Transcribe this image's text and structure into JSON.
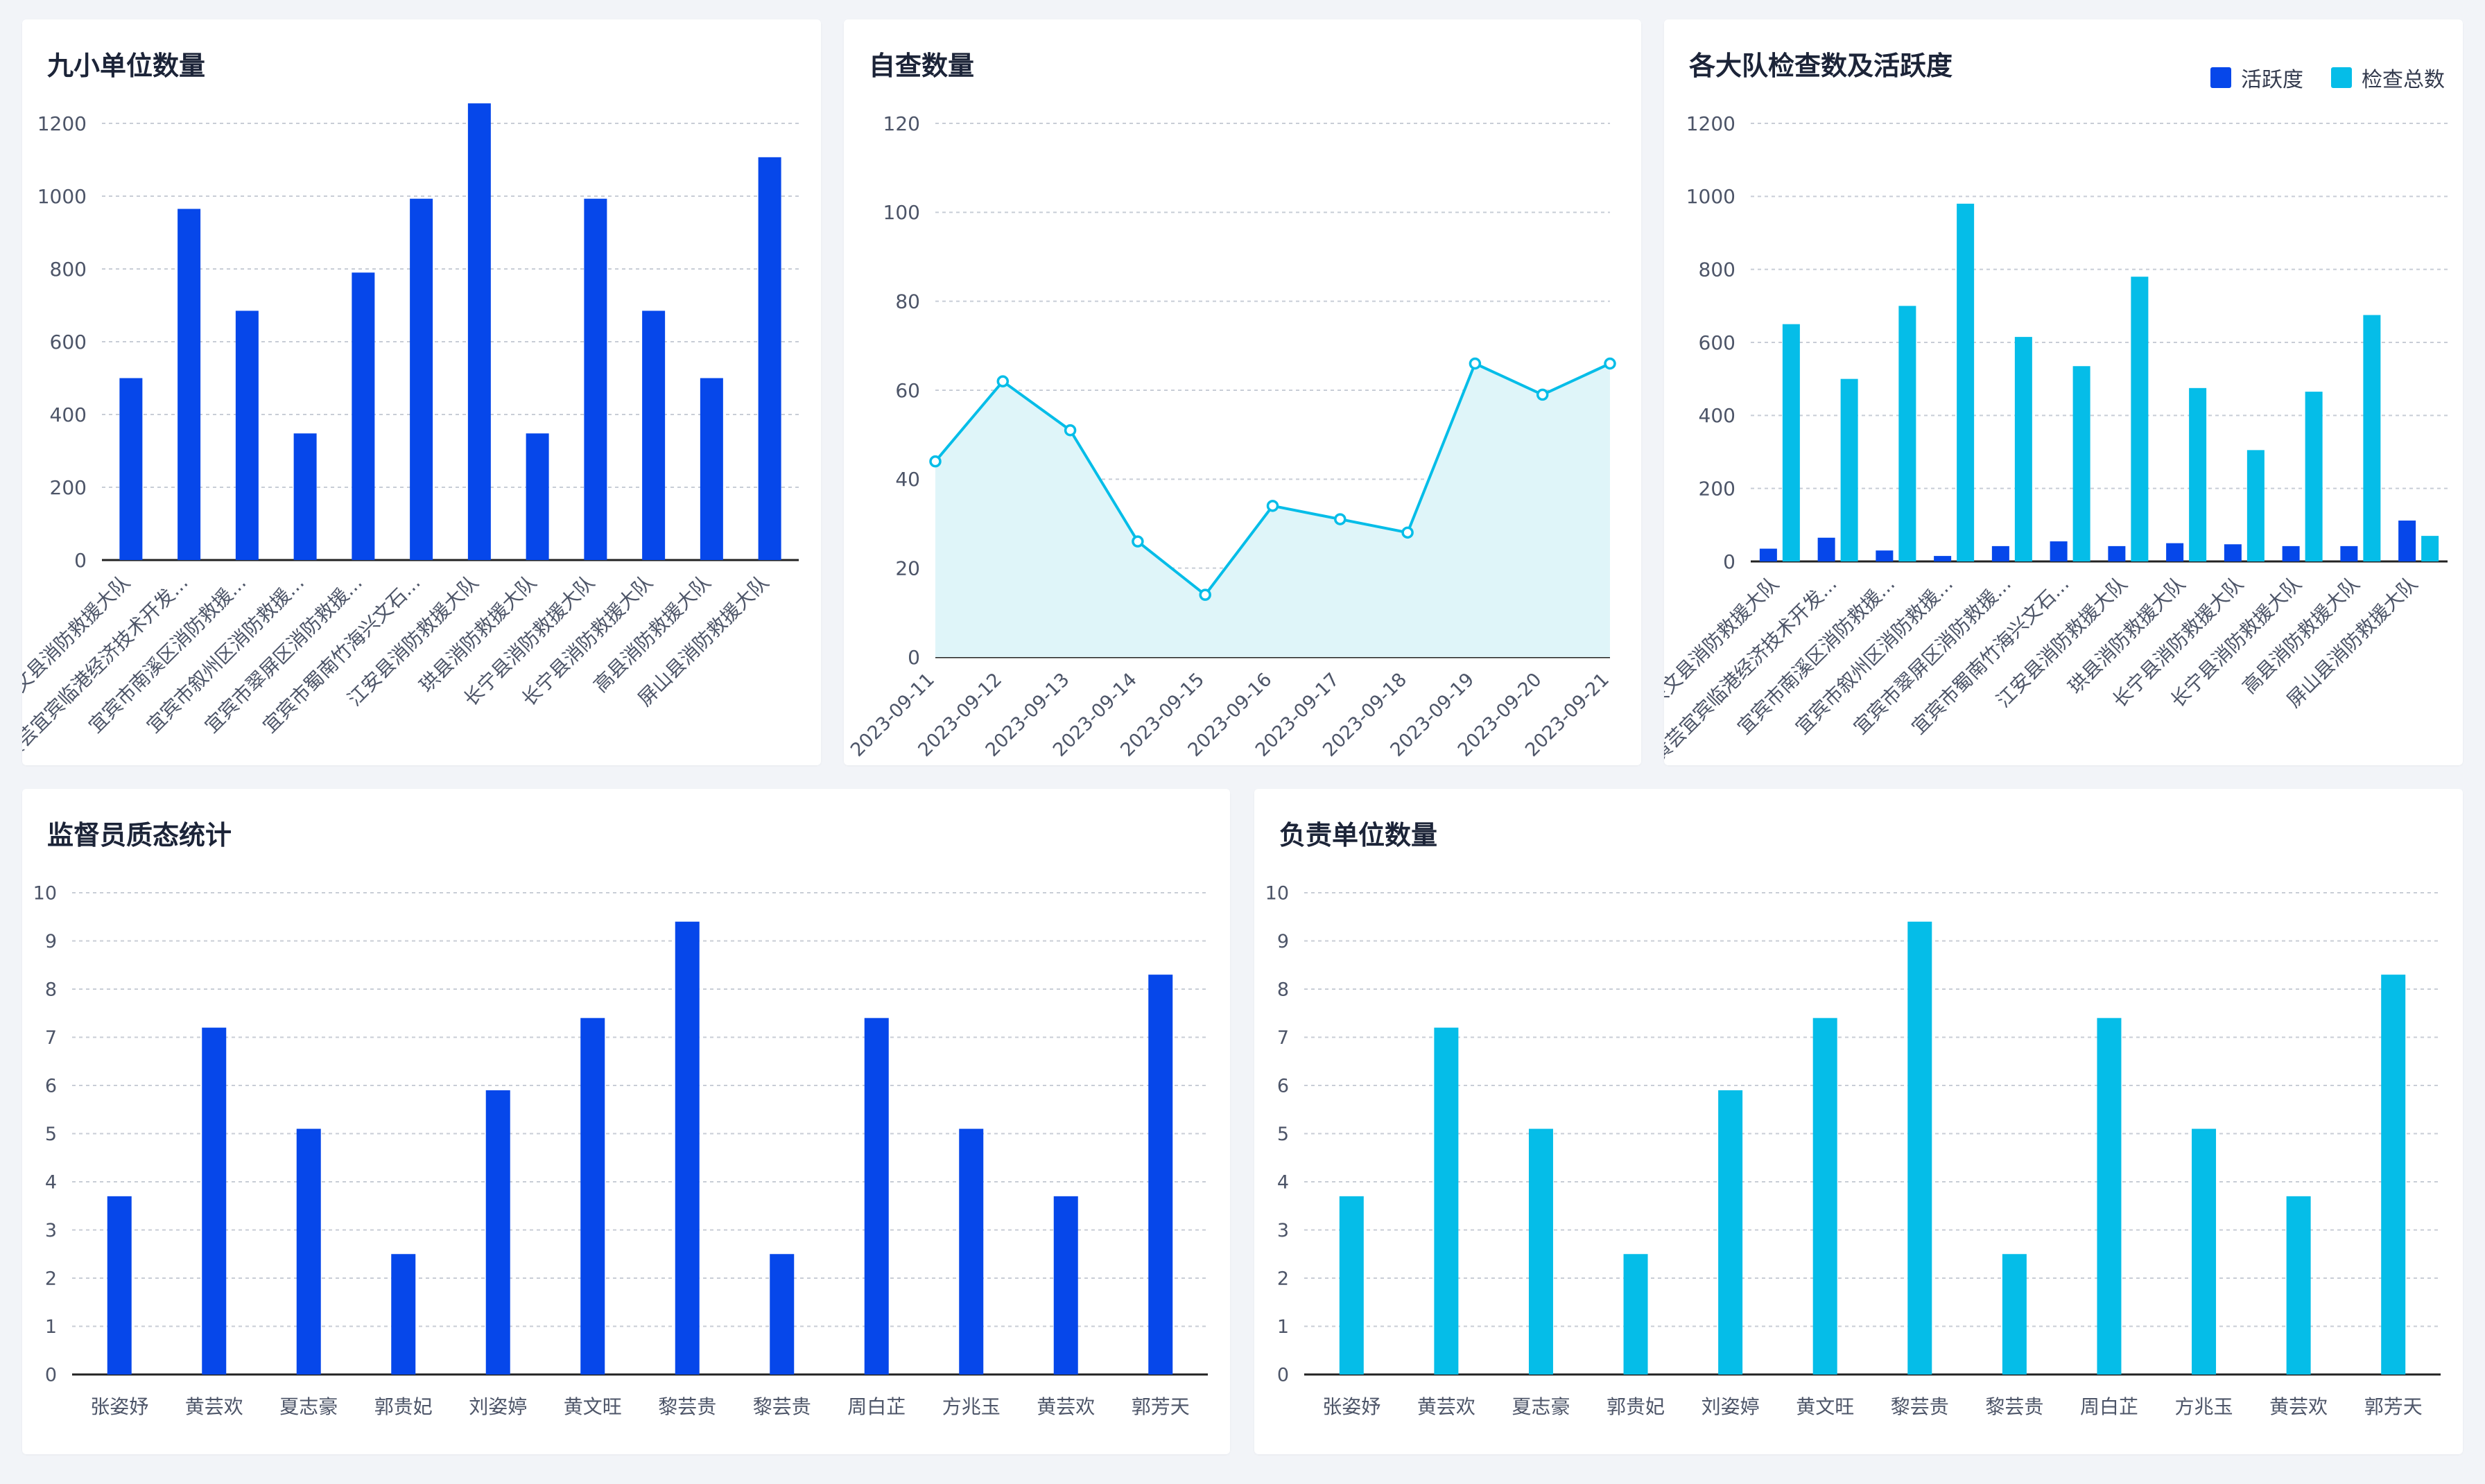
{
  "colors": {
    "blue": "#0647ea",
    "cyan": "#05bde8",
    "area": "#dff5f9",
    "grid": "#c8cdd6",
    "axis": "#222222",
    "label": "#4d5568"
  },
  "panels": [
    {
      "id": "p1",
      "title": "九小单位数量",
      "chart_data": {
        "type": "bar",
        "categories": [
          "兴文县消防救援大队",
          "黄芸宜宾临港经济技术开发...",
          "宜宾市南溪区消防救援...",
          "宜宾市叙州区消防救援...",
          "宜宾市翠屏区消防救援...",
          "宜宾市蜀南竹海兴文石...",
          "江安县消防救援大队",
          "珙县消防救援大队",
          "长宁县消防救援大队",
          "长宁县消防救援大队",
          "高县消防救援大队",
          "屏山县消防救援大队"
        ],
        "series": [
          {
            "values": [
              500,
              965,
              685,
              348,
              790,
              993,
              1255,
              348,
              993,
              685,
              500,
              1107
            ]
          }
        ],
        "yticks": [
          0,
          200,
          400,
          600,
          800,
          1000,
          1200
        ],
        "ylim": [
          0,
          1200
        ],
        "grid": true
      }
    },
    {
      "id": "p2",
      "title": "自查数量",
      "chart_data": {
        "type": "area",
        "x": [
          "2023-09-11",
          "2023-09-12",
          "2023-09-13",
          "2023-09-14",
          "2023-09-15",
          "2023-09-16",
          "2023-09-17",
          "2023-09-18",
          "2023-09-19",
          "2023-09-20",
          "2023-09-21"
        ],
        "series": [
          {
            "values": [
              44,
              62,
              51,
              26,
              14,
              34,
              31,
              28,
              66,
              59,
              66
            ]
          }
        ],
        "yticks": [
          0,
          20,
          40,
          60,
          80,
          100,
          120
        ],
        "ylim": [
          0,
          120
        ],
        "grid": true
      }
    },
    {
      "id": "p3",
      "title": "各大队检查数及活跃度",
      "legend": [
        "活跃度",
        "检查总数"
      ],
      "chart_data": {
        "type": "bar",
        "categories": [
          "兴文县消防救援大队",
          "黄芸宜宾临港经济技术开发...",
          "宜宾市南溪区消防救援...",
          "宜宾市叙州区消防救援...",
          "宜宾市翠屏区消防救援...",
          "宜宾市蜀南竹海兴文石...",
          "江安县消防救援大队",
          "珙县消防救援大队",
          "长宁县消防救援大队",
          "长宁县消防救援大队",
          "高县消防救援大队",
          "屏山县消防救援大队"
        ],
        "series": [
          {
            "name": "活跃度",
            "values": [
              35,
              65,
              30,
              15,
              42,
              55,
              42,
              50,
              47,
              42,
              42,
              112
            ]
          },
          {
            "name": "检查总数",
            "values": [
              650,
              500,
              700,
              980,
              615,
              535,
              780,
              475,
              305,
              465,
              675,
              70
            ]
          }
        ],
        "yticks": [
          0,
          200,
          400,
          600,
          800,
          1000,
          1200
        ],
        "ylim": [
          0,
          1200
        ],
        "grid": true
      }
    },
    {
      "id": "p4",
      "title": "监督员质态统计",
      "chart_data": {
        "type": "bar",
        "categories": [
          "张姿妤",
          "黄芸欢",
          "夏志豪",
          "郭贵妃",
          "刘姿婷",
          "黄文旺",
          "黎芸贵",
          "黎芸贵",
          "周白芷",
          "方兆玉",
          "黄芸欢",
          "郭芳天"
        ],
        "series": [
          {
            "values": [
              3.7,
              7.2,
              5.1,
              2.5,
              5.9,
              7.4,
              9.4,
              2.5,
              7.4,
              5.1,
              3.7,
              8.3
            ]
          }
        ],
        "yticks": [
          0,
          1,
          2,
          3,
          4,
          5,
          6,
          7,
          8,
          9,
          10
        ],
        "ylim": [
          0,
          10
        ],
        "grid": true
      }
    },
    {
      "id": "p5",
      "title": "负责单位数量",
      "chart_data": {
        "type": "bar",
        "categories": [
          "张姿妤",
          "黄芸欢",
          "夏志豪",
          "郭贵妃",
          "刘姿婷",
          "黄文旺",
          "黎芸贵",
          "黎芸贵",
          "周白芷",
          "方兆玉",
          "黄芸欢",
          "郭芳天"
        ],
        "series": [
          {
            "values": [
              3.7,
              7.2,
              5.1,
              2.5,
              5.9,
              7.4,
              9.4,
              2.5,
              7.4,
              5.1,
              3.7,
              8.3
            ]
          }
        ],
        "yticks": [
          0,
          1,
          2,
          3,
          4,
          5,
          6,
          7,
          8,
          9,
          10
        ],
        "ylim": [
          0,
          10
        ],
        "grid": true
      }
    }
  ]
}
